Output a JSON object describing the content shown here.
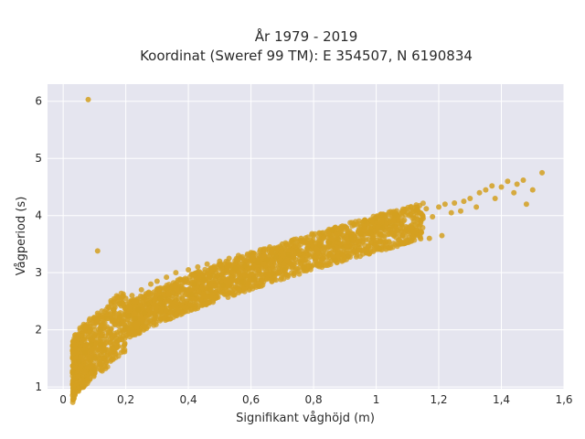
{
  "chart_data": {
    "type": "scatter",
    "title": "År 1979 - 2019",
    "subtitle": "Koordinat (Sweref 99 TM): E 354507, N 6190834",
    "xlabel": "Signifikant våghöjd (m)",
    "ylabel": "Vågperiod (s)",
    "xlim": [
      -0.05,
      1.6
    ],
    "ylim": [
      0.97,
      6.3
    ],
    "xticks": [
      0,
      0.2,
      0.4,
      0.6,
      0.8,
      1,
      1.2,
      1.4,
      1.6
    ],
    "xtick_labels": [
      "0",
      "0,2",
      "0,4",
      "0,6",
      "0,8",
      "1",
      "1,2",
      "1,4",
      "1,6"
    ],
    "yticks": [
      1,
      2,
      3,
      4,
      5,
      6
    ],
    "ytick_labels": [
      "1",
      "2",
      "3",
      "4",
      "5",
      "6"
    ],
    "grid": true,
    "legend": "none",
    "series_color": "#d4a020",
    "plot_background": "#e5e5ef",
    "x": [
      0.08,
      0.11,
      0.03,
      0.05,
      0.07,
      0.09,
      0.1,
      0.12,
      0.14,
      0.16,
      0.18,
      0.2,
      0.22,
      0.25,
      0.28,
      0.3,
      0.33,
      0.36,
      0.4,
      0.43,
      0.46,
      0.5,
      0.53,
      0.56,
      0.6,
      0.63,
      0.66,
      0.7,
      0.73,
      0.76,
      0.8,
      0.83,
      0.86,
      0.9,
      0.93,
      0.96,
      1.0,
      1.03,
      1.06,
      1.1,
      1.13,
      1.16,
      1.2,
      1.22,
      1.25,
      1.28,
      1.3,
      1.33,
      1.35,
      1.37,
      1.4,
      1.42,
      1.45,
      1.47,
      1.5,
      1.53,
      0.12,
      0.15,
      0.18,
      0.21,
      0.24,
      0.27,
      0.31,
      0.35,
      0.38,
      0.42,
      0.45,
      0.48,
      0.52,
      0.55,
      0.58,
      0.62,
      0.65,
      0.68,
      0.72,
      0.75,
      0.78,
      0.82,
      0.85,
      0.88,
      0.92,
      0.95,
      0.98,
      1.02,
      1.05,
      1.08,
      1.12,
      1.15,
      1.18,
      1.24,
      1.27,
      1.32,
      1.38,
      1.44,
      1.48,
      0.1,
      0.13,
      0.17,
      0.2,
      0.23,
      0.26,
      0.32,
      0.37,
      0.41,
      0.47,
      0.51,
      0.57,
      0.61,
      0.67,
      0.71,
      0.77,
      0.81,
      0.87,
      0.91,
      0.97,
      1.01,
      1.07,
      1.11,
      1.17,
      1.21
    ],
    "y": [
      6.03,
      3.38,
      1.25,
      1.45,
      1.6,
      1.75,
      1.5,
      2.0,
      2.2,
      2.35,
      2.45,
      2.55,
      2.6,
      2.7,
      2.8,
      2.85,
      2.92,
      3.0,
      3.05,
      3.1,
      3.15,
      3.2,
      3.25,
      3.3,
      3.35,
      3.4,
      3.45,
      3.5,
      3.55,
      3.6,
      3.65,
      3.7,
      3.75,
      3.8,
      3.85,
      3.9,
      3.95,
      4.0,
      4.02,
      4.05,
      4.1,
      4.12,
      4.15,
      4.2,
      4.22,
      4.25,
      4.3,
      4.4,
      4.45,
      4.52,
      4.5,
      4.6,
      4.55,
      4.62,
      4.45,
      4.75,
      1.75,
      1.95,
      2.1,
      2.25,
      2.35,
      2.45,
      2.55,
      2.65,
      2.72,
      2.8,
      2.88,
      2.95,
      3.0,
      3.08,
      3.12,
      3.18,
      3.22,
      3.28,
      3.32,
      3.38,
      3.42,
      3.48,
      3.52,
      3.58,
      3.62,
      3.68,
      3.72,
      3.78,
      3.82,
      3.85,
      3.9,
      3.95,
      3.98,
      4.05,
      4.08,
      4.15,
      4.3,
      4.4,
      4.2,
      1.3,
      1.6,
      1.85,
      2.05,
      2.2,
      2.3,
      2.45,
      2.55,
      2.62,
      2.7,
      2.78,
      2.85,
      2.9,
      2.98,
      3.05,
      3.1,
      3.15,
      3.22,
      3.28,
      3.35,
      3.42,
      3.5,
      3.55,
      3.6,
      3.65
    ]
  }
}
